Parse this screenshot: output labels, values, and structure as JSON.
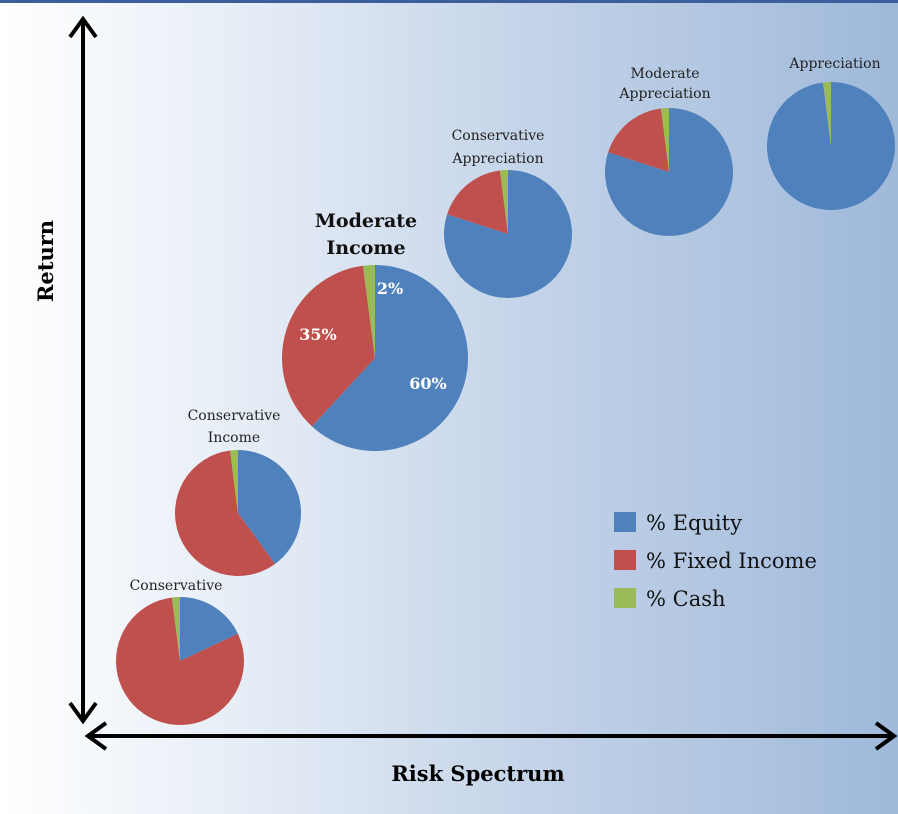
{
  "chart_data": {
    "type": "pie",
    "xlabel": "Risk Spectrum",
    "ylabel": "Return",
    "categories": [
      "% Equity",
      "% Fixed Income",
      "% Cash"
    ],
    "colors": [
      "#4f81bd",
      "#c0504d",
      "#9bbb59"
    ],
    "pies": [
      {
        "name": "Conservative",
        "values": [
          18,
          80,
          2
        ]
      },
      {
        "name": "Conservative Income",
        "values": [
          40,
          58,
          2
        ]
      },
      {
        "name": "Moderate Income",
        "values": [
          60,
          35,
          2
        ],
        "highlight": true,
        "data_labels": [
          "60%",
          "35%",
          "2%"
        ]
      },
      {
        "name": "Conservative Appreciation",
        "values": [
          80,
          18,
          2
        ]
      },
      {
        "name": "Moderate Appreciation",
        "values": [
          80,
          18,
          2
        ]
      },
      {
        "name": "Appreciation",
        "values": [
          98,
          0,
          2
        ]
      }
    ],
    "legend": {
      "position": "right",
      "items": [
        "% Equity",
        "% Fixed Income",
        "% Cash"
      ]
    }
  }
}
